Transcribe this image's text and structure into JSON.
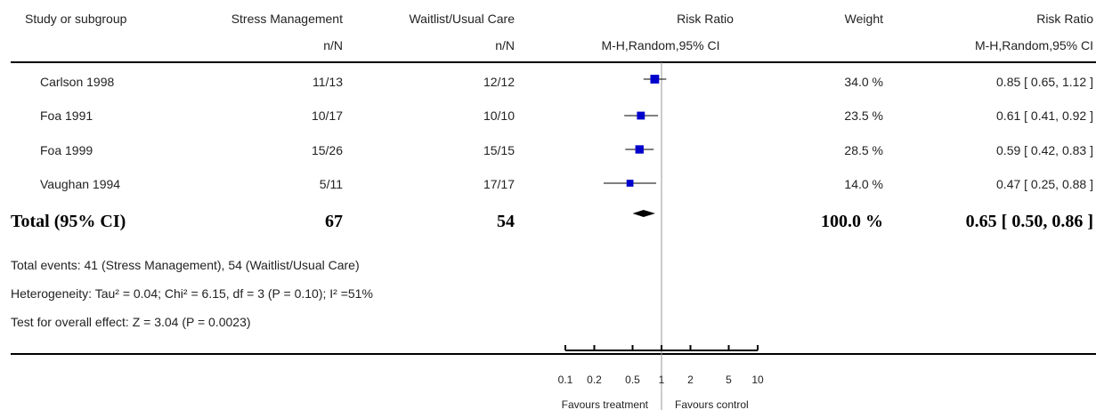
{
  "header": {
    "study": "Study or subgroup",
    "group1": "Stress Management",
    "group1_sub": "n/N",
    "group2": "Waitlist/Usual Care",
    "group2_sub": "n/N",
    "plot_title": "Risk Ratio",
    "plot_sub": "M-H,Random,95% CI",
    "weight": "Weight",
    "ratio_title": "Risk Ratio",
    "ratio_sub": "M-H,Random,95% CI"
  },
  "studies": [
    {
      "name": "Carlson 1998",
      "treatment": "11/13",
      "control": "12/12",
      "weight": "34.0 %",
      "ci_text": "0.85 [ 0.65, 1.12 ]"
    },
    {
      "name": "Foa 1991",
      "treatment": "10/17",
      "control": "10/10",
      "weight": "23.5 %",
      "ci_text": "0.61 [ 0.41, 0.92 ]"
    },
    {
      "name": "Foa 1999",
      "treatment": "15/26",
      "control": "15/15",
      "weight": "28.5 %",
      "ci_text": "0.59 [ 0.42, 0.83 ]"
    },
    {
      "name": "Vaughan 1994",
      "treatment": "5/11",
      "control": "17/17",
      "weight": "14.0 %",
      "ci_text": "0.47 [ 0.25, 0.88 ]"
    }
  ],
  "total": {
    "label": "Total (95% CI)",
    "treatment": "67",
    "control": "54",
    "weight": "100.0 %",
    "ci_text": "0.65 [ 0.50, 0.86 ]"
  },
  "footnotes": {
    "events": "Total events: 41 (Stress Management), 54 (Waitlist/Usual Care)",
    "heterogeneity": "Heterogeneity: Tau² = 0.04; Chi² = 6.15, df = 3 (P = 0.10); I² =51%",
    "overall": "Test for overall effect: Z = 3.04 (P = 0.0023)"
  },
  "axis": {
    "left_label": "Favours treatment",
    "right_label": "Favours control"
  },
  "colors": {
    "marker": "#0000cc",
    "line": "#000000",
    "ref_line": "#999999"
  },
  "chart_data": {
    "type": "forest",
    "title": "Risk Ratio",
    "subtitle": "M-H,Random,95% CI",
    "x_scale": "log",
    "xlim": [
      0.1,
      10
    ],
    "ticks": [
      0.1,
      0.2,
      0.5,
      1,
      2,
      5,
      10
    ],
    "tick_labels": [
      "0.1",
      "0.2",
      "0.5",
      "1",
      "2",
      "5",
      "10"
    ],
    "reference": 1,
    "series": [
      {
        "name": "Carlson 1998",
        "estimate": 0.85,
        "lower": 0.65,
        "upper": 1.12,
        "weight": 34.0
      },
      {
        "name": "Foa 1991",
        "estimate": 0.61,
        "lower": 0.41,
        "upper": 0.92,
        "weight": 23.5
      },
      {
        "name": "Foa 1999",
        "estimate": 0.59,
        "lower": 0.42,
        "upper": 0.83,
        "weight": 28.5
      },
      {
        "name": "Vaughan 1994",
        "estimate": 0.47,
        "lower": 0.25,
        "upper": 0.88,
        "weight": 14.0
      }
    ],
    "pooled": {
      "estimate": 0.65,
      "lower": 0.5,
      "upper": 0.86,
      "weight": 100.0
    }
  }
}
